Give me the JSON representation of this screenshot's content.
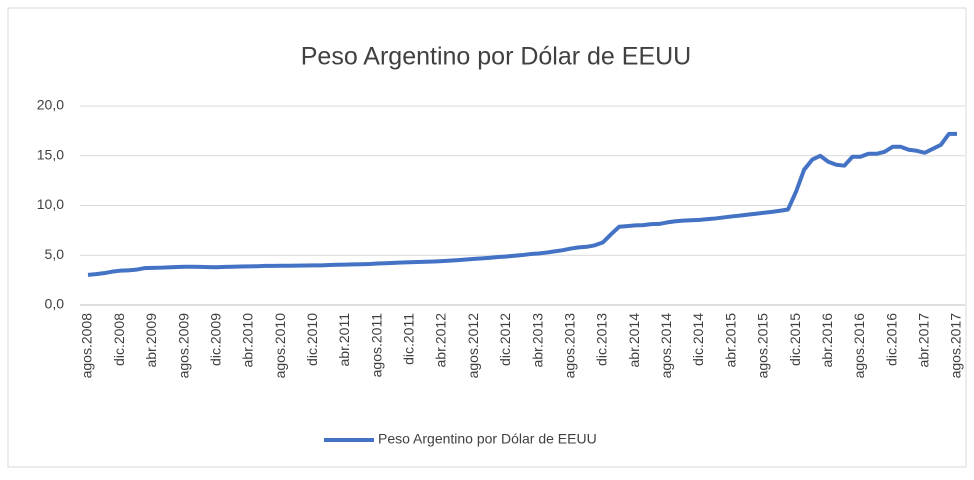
{
  "chart_data": {
    "type": "line",
    "title": "Peso Argentino por Dólar de EEUU",
    "categories": [
      "agos.2008",
      null,
      null,
      null,
      "dic.2008",
      null,
      null,
      null,
      "abr.2009",
      null,
      null,
      null,
      "agos.2009",
      null,
      null,
      null,
      "dic.2009",
      null,
      null,
      null,
      "abr.2010",
      null,
      null,
      null,
      "agos.2010",
      null,
      null,
      null,
      "dic.2010",
      null,
      null,
      null,
      "abr.2011",
      null,
      null,
      null,
      "agos.2011",
      null,
      null,
      null,
      "dic.2011",
      null,
      null,
      null,
      "abr.2012",
      null,
      null,
      null,
      "agos.2012",
      null,
      null,
      null,
      "dic.2012",
      null,
      null,
      null,
      "abr.2013",
      null,
      null,
      null,
      "agos.2013",
      null,
      null,
      null,
      "dic.2013",
      null,
      null,
      null,
      "abr.2014",
      null,
      null,
      null,
      "agos.2014",
      null,
      null,
      null,
      "dic.2014",
      null,
      null,
      null,
      "abr.2015",
      null,
      null,
      null,
      "agos.2015",
      null,
      null,
      null,
      "dic.2015",
      null,
      null,
      null,
      "abr.2016",
      null,
      null,
      null,
      "agos.2016",
      null,
      null,
      null,
      "dic.2016",
      null,
      null,
      null,
      "abr.2017",
      null,
      null,
      null,
      "agos.2017"
    ],
    "series": [
      {
        "name": "Peso Argentino por Dólar de EEUU",
        "color": "#4472c4",
        "values": [
          3.03,
          3.1,
          3.2,
          3.35,
          3.45,
          3.48,
          3.55,
          3.7,
          3.73,
          3.75,
          3.78,
          3.82,
          3.84,
          3.85,
          3.83,
          3.81,
          3.8,
          3.83,
          3.85,
          3.87,
          3.88,
          3.9,
          3.93,
          3.93,
          3.94,
          3.95,
          3.96,
          3.97,
          3.98,
          3.98,
          4.02,
          4.04,
          4.06,
          4.08,
          4.1,
          4.12,
          4.17,
          4.2,
          4.23,
          4.27,
          4.3,
          4.32,
          4.35,
          4.37,
          4.41,
          4.46,
          4.51,
          4.57,
          4.63,
          4.69,
          4.75,
          4.82,
          4.88,
          4.95,
          5.02,
          5.12,
          5.18,
          5.27,
          5.39,
          5.51,
          5.67,
          5.79,
          5.85,
          6.0,
          6.3,
          7.1,
          7.86,
          7.93,
          8.0,
          8.03,
          8.13,
          8.15,
          8.3,
          8.42,
          8.48,
          8.52,
          8.55,
          8.63,
          8.7,
          8.8,
          8.9,
          8.98,
          9.08,
          9.17,
          9.27,
          9.36,
          9.47,
          9.6,
          11.4,
          13.6,
          14.6,
          15.0,
          14.4,
          14.1,
          14.0,
          14.9,
          14.9,
          15.2,
          15.2,
          15.4,
          15.9,
          15.9,
          15.6,
          15.5,
          15.3,
          15.7,
          16.1,
          17.2,
          17.2
        ]
      }
    ],
    "ylim": [
      0,
      20
    ],
    "yticks": [
      {
        "value": 0,
        "label": "0,0"
      },
      {
        "value": 5,
        "label": "5,0"
      },
      {
        "value": 10,
        "label": "10,0"
      },
      {
        "value": 15,
        "label": "15,0"
      },
      {
        "value": 20,
        "label": "20,0"
      }
    ],
    "grid": true,
    "legend": "bottom"
  }
}
